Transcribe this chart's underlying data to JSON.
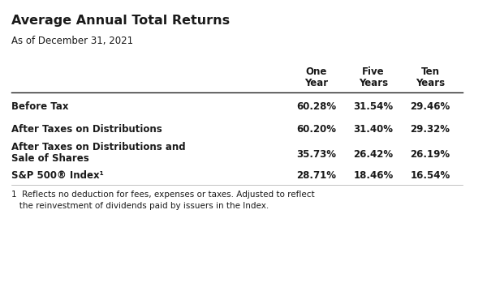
{
  "title": "Average Annual Total Returns",
  "subtitle": "As of December 31, 2021",
  "col_headers_line1": [
    "One",
    "Five",
    "Ten"
  ],
  "col_headers_line2": [
    "Year",
    "Years",
    "Years"
  ],
  "rows": [
    {
      "label_line1": "Before Tax",
      "label_line2": null,
      "values": [
        "60.28%",
        "31.54%",
        "29.46%"
      ],
      "val_row": 0
    },
    {
      "label_line1": "After Taxes on Distributions",
      "label_line2": null,
      "values": [
        "60.20%",
        "31.40%",
        "29.32%"
      ],
      "val_row": 1
    },
    {
      "label_line1": "After Taxes on Distributions and",
      "label_line2": "Sale of Shares",
      "values": [
        "35.73%",
        "26.42%",
        "26.19%"
      ],
      "val_row": 2
    },
    {
      "label_line1": "S&P 500® Index¹",
      "label_line2": null,
      "values": [
        "28.71%",
        "18.46%",
        "16.54%"
      ],
      "val_row": 3
    }
  ],
  "footnote_line1": "1  Reflects no deduction for fees, expenses or taxes. Adjusted to reflect",
  "footnote_line2": "   the reinvestment of dividends paid by issuers in the Index.",
  "bg_color": "#ffffff",
  "text_color": "#1a1a1a",
  "title_fontsize": 11.5,
  "subtitle_fontsize": 8.5,
  "header_fontsize": 8.5,
  "data_fontsize": 8.5,
  "footnote_fontsize": 7.5
}
